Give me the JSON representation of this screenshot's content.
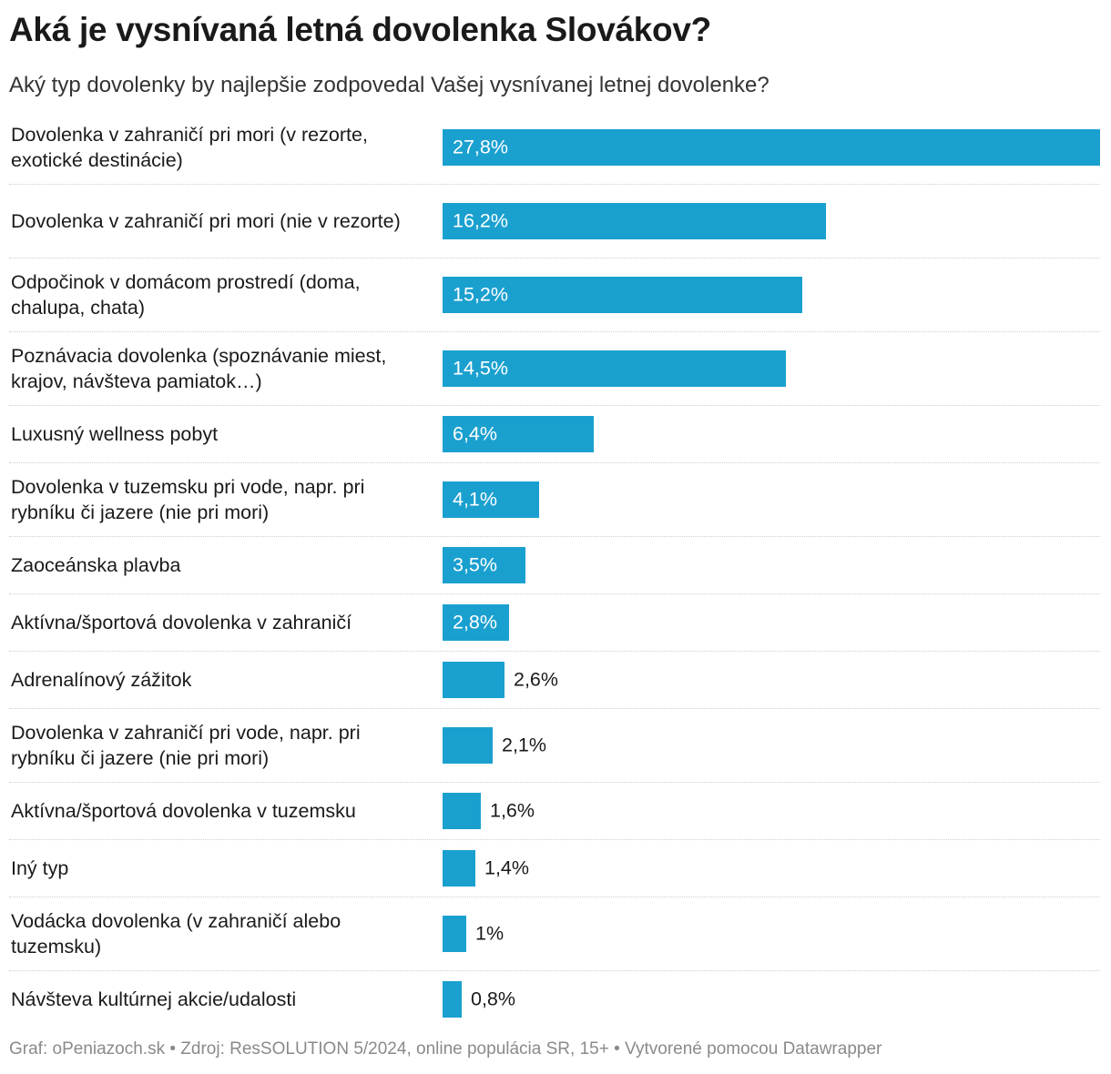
{
  "header": {
    "title": "Aká je vysnívaná letná dovolenka Slovákov?",
    "subtitle": "Aký typ dovolenky by najlepšie zodpovedal Vašej vysnívanej letnej dovolenke?"
  },
  "footer": {
    "text": "Graf: oPeniazoch.sk • Zdroj: ResSOLUTION 5/2024, online populácia SR, 15+ • Vytvorené pomocou Datawrapper"
  },
  "colors": {
    "bar": "#1aa0cf"
  },
  "chart_data": {
    "type": "bar",
    "orientation": "horizontal",
    "title": "Aká je vysnívaná letná dovolenka Slovákov?",
    "subtitle": "Aký typ dovolenky by najlepšie zodpovedal Vašej vysnívanej letnej dovolenke?",
    "unit": "%",
    "xlim": [
      0,
      27.8
    ],
    "categories": [
      "Dovolenka v zahraničí pri mori (v rezorte, exotické destinácie)",
      "Dovolenka v zahraničí pri mori (nie v rezorte)",
      "Odpočinok v domácom prostredí (doma, chalupa, chata)",
      "Poznávacia dovolenka (spoznávanie miest, krajov, návšteva pamiatok…)",
      "Luxusný wellness pobyt",
      "Dovolenka v tuzemsku pri vode, napr. pri rybníku či jazere (nie pri mori)",
      "Zaoceánska plavba",
      "Aktívna/športová dovolenka v zahraničí",
      "Adrenalínový zážitok",
      "Dovolenka v zahraničí pri vode, napr. pri rybníku či jazere (nie pri mori)",
      "Aktívna/športová dovolenka v tuzemsku",
      "Iný typ",
      "Vodácka dovolenka (v zahraničí alebo tuzemsku)",
      "Návšteva kultúrnej akcie/udalosti"
    ],
    "values": [
      27.8,
      16.2,
      15.2,
      14.5,
      6.4,
      4.1,
      3.5,
      2.8,
      2.6,
      2.1,
      1.6,
      1.4,
      1,
      0.8
    ],
    "value_labels": [
      "27,8%",
      "16,2%",
      "15,2%",
      "14,5%",
      "6,4%",
      "4,1%",
      "3,5%",
      "2,8%",
      "2,6%",
      "2,1%",
      "1,6%",
      "1,4%",
      "1%",
      "0,8%"
    ]
  }
}
